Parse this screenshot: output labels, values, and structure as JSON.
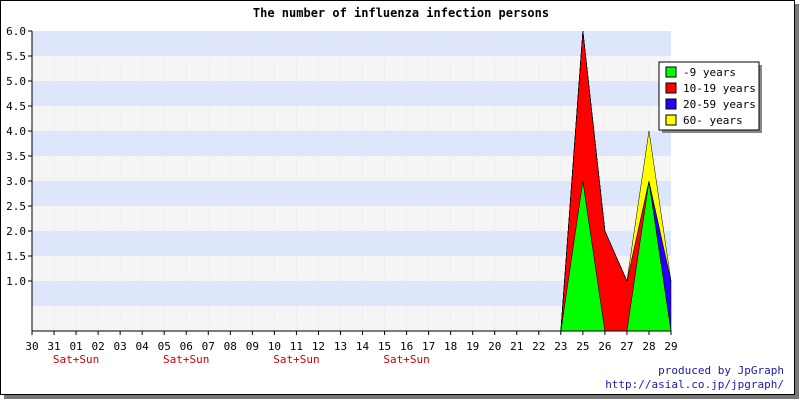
{
  "chart_data": {
    "type": "area",
    "title": "The number of influenza infection persons",
    "xlabel": "",
    "ylabel": "",
    "categories": [
      "30",
      "31",
      "01",
      "02",
      "03",
      "04",
      "05",
      "06",
      "07",
      "08",
      "09",
      "10",
      "11",
      "12",
      "13",
      "14",
      "15",
      "16",
      "17",
      "18",
      "19",
      "20",
      "21",
      "22",
      "23",
      "25",
      "26",
      "27",
      "28",
      "29"
    ],
    "weekend_labels": [
      {
        "category_index": 2,
        "text": "Sat+Sun"
      },
      {
        "category_index": 7,
        "text": "Sat+Sun"
      },
      {
        "category_index": 12,
        "text": "Sat+Sun"
      },
      {
        "category_index": 17,
        "text": "Sat+Sun"
      }
    ],
    "ylim": [
      0,
      6
    ],
    "yticks": [
      "1.0",
      "1.5",
      "2.0",
      "2.5",
      "3.0",
      "3.5",
      "4.0",
      "4.5",
      "5.0",
      "5.5",
      "6.0"
    ],
    "stacked": true,
    "series": [
      {
        "name": "-9 years",
        "color": "#00ff00",
        "values": [
          0,
          0,
          0,
          0,
          0,
          0,
          0,
          0,
          0,
          0,
          0,
          0,
          0,
          0,
          0,
          0,
          0,
          0,
          0,
          0,
          0,
          0,
          0,
          0,
          0,
          3,
          0,
          0,
          3,
          0
        ]
      },
      {
        "name": "10-19 years",
        "color": "#ff0000",
        "values": [
          0,
          0,
          0,
          0,
          0,
          0,
          0,
          0,
          0,
          0,
          0,
          0,
          0,
          0,
          0,
          0,
          0,
          0,
          0,
          0,
          0,
          0,
          0,
          0,
          0,
          3,
          2,
          1,
          0,
          0
        ]
      },
      {
        "name": "20-59 years",
        "color": "#2200ff",
        "values": [
          0,
          0,
          0,
          0,
          0,
          0,
          0,
          0,
          0,
          0,
          0,
          0,
          0,
          0,
          0,
          0,
          0,
          0,
          0,
          0,
          0,
          0,
          0,
          0,
          0,
          0,
          0,
          0,
          0,
          1
        ]
      },
      {
        "name": "60- years",
        "color": "#ffff00",
        "values": [
          0,
          0,
          0,
          0,
          0,
          0,
          0,
          0,
          0,
          0,
          0,
          0,
          0,
          0,
          0,
          0,
          0,
          0,
          0,
          0,
          0,
          0,
          0,
          0,
          0,
          0,
          0,
          0,
          1,
          0
        ]
      }
    ],
    "legend_position": "top-right",
    "grid": true
  },
  "colors": {
    "band_a": "#dde6fb",
    "band_b": "#f5f5f5",
    "weekend_text": "#cc0000",
    "credit_text": "#1a1aa6"
  },
  "footer": {
    "credit_line1": "produced by JpGraph",
    "credit_line2": "http://asial.co.jp/jpgraph/"
  }
}
